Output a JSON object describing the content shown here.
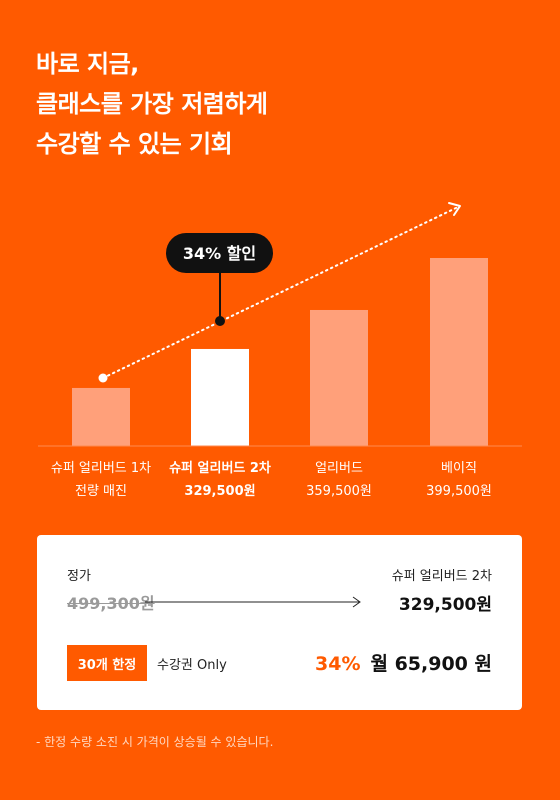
{
  "headline": {
    "line1": "바로 지금,",
    "line2": "클래스를 가장 저렴하게",
    "line3": "수강할 수 있는 기회"
  },
  "callout": {
    "text": "34% 할인"
  },
  "chart_data": {
    "type": "bar",
    "categories": [
      "슈퍼 얼리버드 1차",
      "슈퍼 얼리버드 2차",
      "얼리버드",
      "베이직"
    ],
    "subtitles": [
      "전량 매진",
      "329,500원",
      "359,500원",
      "399,500원"
    ],
    "values": [
      299500,
      329500,
      359500,
      399500
    ],
    "highlight_index": 1,
    "colors": {
      "bar": "#FFA07A",
      "highlight": "#FFFFFF",
      "background": "#FF5A00"
    }
  },
  "pricing": {
    "regular_label": "정가",
    "regular_price": "499,300원",
    "product_label": "슈퍼 얼리버드 2차",
    "product_price": "329,500원",
    "badge": "30개 한정",
    "pass_label": "수강권 Only",
    "discount": "34%",
    "monthly": "월 65,900 원"
  },
  "footnote": "- 한정 수량 소진 시 가격이 상승될 수 있습니다.",
  "colors": {
    "accent": "#FF5A00",
    "card": "#FFFFFF",
    "callout_bg": "#111111"
  }
}
